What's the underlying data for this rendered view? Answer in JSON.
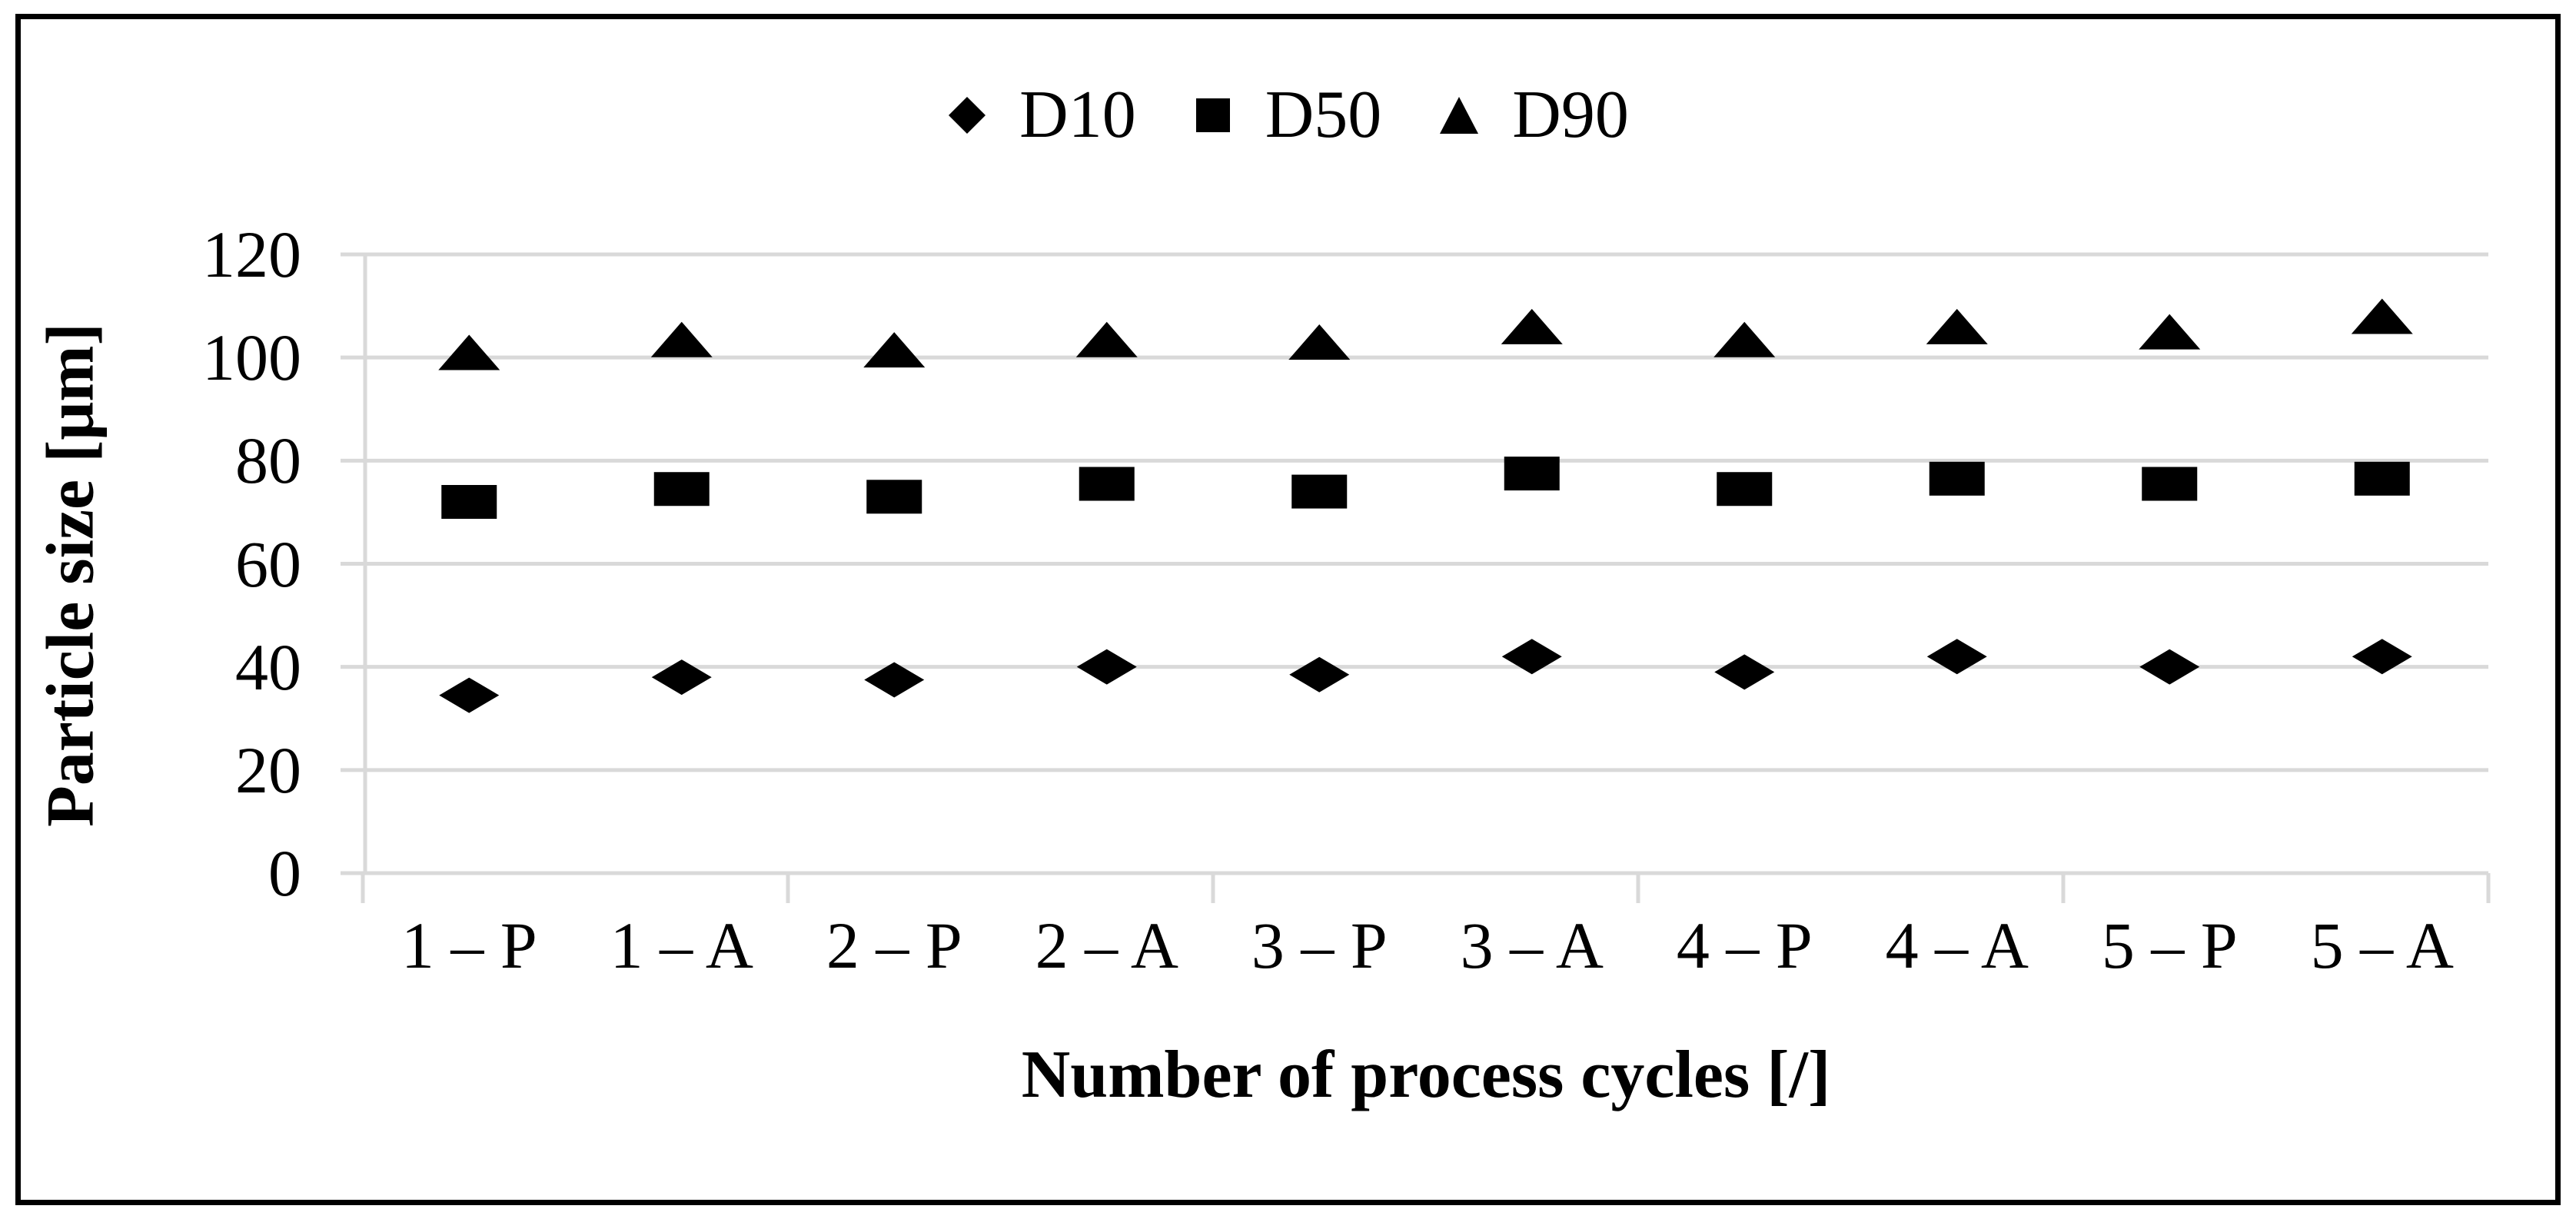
{
  "chart_data": {
    "type": "scatter",
    "title": "",
    "xlabel": "Number of process cycles [/]",
    "ylabel": "Particle size [μm]",
    "categories": [
      "1 – P",
      "1 – A",
      "2 – P",
      "2 – A",
      "3 – P",
      "3 – A",
      "4 – P",
      "4 – A",
      "5 – P",
      "5 – A"
    ],
    "series": [
      {
        "name": "D10",
        "marker": "diamond",
        "values": [
          34.5,
          38,
          37.5,
          40,
          38.5,
          42,
          39,
          42,
          40,
          42
        ]
      },
      {
        "name": "D50",
        "marker": "square",
        "values": [
          72,
          74.5,
          73,
          75.5,
          74,
          77.5,
          74.5,
          76.5,
          75.5,
          76.5
        ]
      },
      {
        "name": "D90",
        "marker": "triangle",
        "values": [
          101,
          103.5,
          101.5,
          103.5,
          103,
          106,
          103.5,
          106,
          105,
          108
        ]
      }
    ],
    "ylim": [
      0,
      120
    ],
    "yticks": [
      0,
      20,
      40,
      60,
      80,
      100,
      120
    ],
    "grid": true,
    "legend_position": "top-center",
    "units": "μm",
    "colors": {
      "marker": "#000000",
      "gridline": "#d9d9d9",
      "axis_line": "#d9d9d9",
      "text": "#000000",
      "frame": "#000000",
      "background": "#ffffff"
    }
  }
}
